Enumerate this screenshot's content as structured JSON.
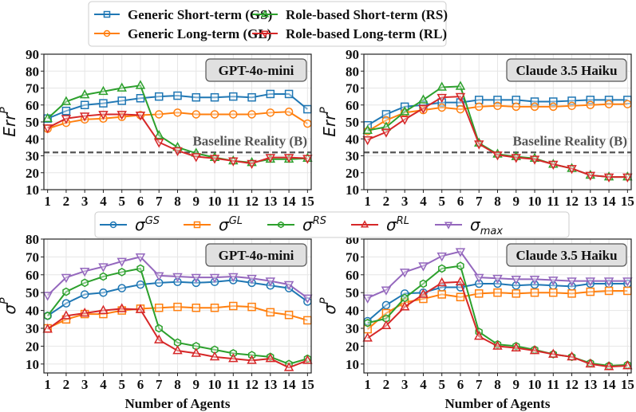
{
  "legend_top": [
    {
      "key": "GS",
      "label": "Generic Short-term (GS)",
      "color": "#1f77b4",
      "marker": "square"
    },
    {
      "key": "RS",
      "label": "Role-based Short-term (RS)",
      "color": "#2ca02c",
      "marker": "triangle-up"
    },
    {
      "key": "GL",
      "label": "Generic Long-term (GL)",
      "color": "#ff7f0e",
      "marker": "circle"
    },
    {
      "key": "RL",
      "label": "Role-based Long-term (RL)",
      "color": "#d62728",
      "marker": "triangle-down"
    }
  ],
  "legend_bottom": [
    {
      "key": "GS",
      "base": "σ",
      "sup": "GS",
      "sub": "",
      "color": "#1f77b4",
      "marker": "circle"
    },
    {
      "key": "GL",
      "base": "σ",
      "sup": "GL",
      "sub": "",
      "color": "#ff7f0e",
      "marker": "square"
    },
    {
      "key": "RS",
      "base": "σ",
      "sup": "RS",
      "sub": "",
      "color": "#2ca02c",
      "marker": "hexagon"
    },
    {
      "key": "RL",
      "base": "σ",
      "sup": "RL",
      "sub": "",
      "color": "#d62728",
      "marker": "triangle-up"
    },
    {
      "key": "max",
      "base": "σ",
      "sup": "",
      "sub": "max",
      "color": "#9467bd",
      "marker": "triangle-down"
    }
  ],
  "chart_data": [
    {
      "type": "line",
      "title": "GPT-4o-mini",
      "ylabel": "Err^P",
      "ylabel_base": "Err",
      "ylabel_sup": "P",
      "xlabel": "",
      "x": [
        1,
        2,
        3,
        4,
        5,
        6,
        7,
        8,
        9,
        10,
        11,
        12,
        13,
        14,
        15
      ],
      "ylim": [
        10,
        90
      ],
      "yticks": [
        10,
        20,
        30,
        40,
        50,
        60,
        70,
        80,
        90
      ],
      "grid": true,
      "baseline": {
        "value": 32,
        "label": "Baseline Reality (B)"
      },
      "series": [
        {
          "name": "Generic Short-term (GS)",
          "color": "#1f77b4",
          "marker": "square",
          "values": [
            52,
            56.5,
            60,
            61,
            62.5,
            64,
            65,
            65.5,
            64.5,
            64.5,
            65,
            64.5,
            66.5,
            66.5,
            57.5
          ]
        },
        {
          "name": "Generic Long-term (GL)",
          "color": "#ff7f0e",
          "marker": "circle",
          "values": [
            46,
            49.5,
            51.5,
            52,
            53,
            54,
            54.5,
            55.5,
            54.5,
            54.5,
            54.5,
            54.5,
            55.5,
            56,
            49
          ]
        },
        {
          "name": "Role-based Short-term (RS)",
          "color": "#2ca02c",
          "marker": "triangle-up",
          "values": [
            52,
            62,
            66,
            68,
            70,
            71.5,
            42,
            35,
            31.5,
            29,
            27,
            26,
            28,
            28,
            28.5
          ]
        },
        {
          "name": "Role-based Long-term (RL)",
          "color": "#d62728",
          "marker": "triangle-down",
          "values": [
            46.5,
            52,
            53.5,
            54.5,
            54.5,
            54,
            38,
            33,
            29.5,
            28.5,
            27,
            25.5,
            29,
            29,
            28.5
          ]
        }
      ]
    },
    {
      "type": "line",
      "title": "Claude 3.5 Haiku",
      "ylabel": "Err^P",
      "ylabel_base": "Err",
      "ylabel_sup": "P",
      "xlabel": "",
      "x": [
        1,
        2,
        3,
        4,
        5,
        6,
        7,
        8,
        9,
        10,
        11,
        12,
        13,
        14,
        15
      ],
      "ylim": [
        10,
        90
      ],
      "yticks": [
        10,
        20,
        30,
        40,
        50,
        60,
        70,
        80,
        90
      ],
      "grid": true,
      "baseline": {
        "value": 32,
        "label": "Baseline Reality (B)"
      },
      "series": [
        {
          "name": "Generic Short-term (GS)",
          "color": "#1f77b4",
          "marker": "square",
          "values": [
            48,
            54.5,
            59,
            60,
            61.5,
            61.5,
            63,
            63,
            63,
            62,
            62,
            62.5,
            63,
            63,
            63
          ]
        },
        {
          "name": "Generic Long-term (GL)",
          "color": "#ff7f0e",
          "marker": "circle",
          "values": [
            44.5,
            51,
            55.5,
            57,
            58.5,
            57.5,
            59,
            59.5,
            59,
            59,
            59,
            59.5,
            60,
            60.5,
            60.5
          ]
        },
        {
          "name": "Role-based Short-term (RS)",
          "color": "#2ca02c",
          "marker": "triangle-up",
          "values": [
            45,
            47,
            56,
            63,
            70.5,
            71,
            37.5,
            31,
            29.5,
            28.5,
            25,
            22.5,
            18.5,
            17.5,
            17.5
          ]
        },
        {
          "name": "Role-based Long-term (RL)",
          "color": "#d62728",
          "marker": "triangle-down",
          "values": [
            39.5,
            44,
            51.5,
            58,
            64.5,
            65,
            37,
            30.5,
            29,
            28,
            25,
            22.5,
            18.5,
            17.5,
            17.5
          ]
        }
      ]
    },
    {
      "type": "line",
      "title": "GPT-4o-mini",
      "ylabel": "σ^P",
      "ylabel_base": "σ",
      "ylabel_sup": "P",
      "xlabel": "Number of Agents",
      "x": [
        1,
        2,
        3,
        4,
        5,
        6,
        7,
        8,
        9,
        10,
        11,
        12,
        13,
        14,
        15
      ],
      "ylim": [
        5,
        80
      ],
      "yticks": [
        10,
        20,
        30,
        40,
        50,
        60,
        70,
        80
      ],
      "grid": true,
      "series": [
        {
          "name": "σ^GS",
          "color": "#1f77b4",
          "marker": "circle",
          "values": [
            37,
            44,
            49,
            50,
            52.5,
            54.5,
            55.5,
            56,
            55.5,
            56,
            57,
            55.5,
            54,
            52.5,
            45
          ]
        },
        {
          "name": "σ^GL",
          "color": "#ff7f0e",
          "marker": "square",
          "values": [
            30,
            35,
            38,
            38,
            40,
            41,
            41.5,
            42,
            41.5,
            41.5,
            42.5,
            42,
            39,
            37.5,
            34.5
          ]
        },
        {
          "name": "σ^RS",
          "color": "#2ca02c",
          "marker": "hexagon",
          "values": [
            37,
            50.5,
            55.5,
            59,
            61.5,
            63.5,
            30,
            22,
            20,
            18,
            16,
            15,
            14,
            10,
            13
          ]
        },
        {
          "name": "σ^RL",
          "color": "#d62728",
          "marker": "triangle-up",
          "values": [
            29.5,
            37,
            38.5,
            40,
            41,
            40.5,
            23.5,
            17.5,
            16,
            14,
            13,
            12,
            13,
            8,
            12
          ]
        },
        {
          "name": "σ_max",
          "color": "#9467bd",
          "marker": "triangle-down",
          "values": [
            48.5,
            58.5,
            62,
            64.5,
            67.5,
            70,
            59.5,
            59,
            58.5,
            58.5,
            59,
            58,
            56.5,
            54.5,
            47
          ]
        }
      ]
    },
    {
      "type": "line",
      "title": "Claude 3.5 Haiku",
      "ylabel": "σ^P",
      "ylabel_base": "σ",
      "ylabel_sup": "P",
      "xlabel": "Number of Agents",
      "x": [
        1,
        2,
        3,
        4,
        5,
        6,
        7,
        8,
        9,
        10,
        11,
        12,
        13,
        14,
        15
      ],
      "ylim": [
        5,
        80
      ],
      "yticks": [
        10,
        20,
        30,
        40,
        50,
        60,
        70,
        80
      ],
      "grid": true,
      "series": [
        {
          "name": "σ^GS",
          "color": "#1f77b4",
          "marker": "circle",
          "values": [
            34,
            43,
            49.5,
            50,
            53,
            53,
            55,
            55,
            54,
            54.5,
            54,
            53.5,
            55,
            55,
            55
          ]
        },
        {
          "name": "σ^GL",
          "color": "#ff7f0e",
          "marker": "square",
          "values": [
            29.5,
            38.5,
            44.5,
            46.5,
            49,
            47.5,
            49.5,
            50,
            49.5,
            50,
            50,
            49.5,
            50.5,
            51,
            51
          ]
        },
        {
          "name": "σ^RS",
          "color": "#2ca02c",
          "marker": "hexagon",
          "values": [
            33,
            35.5,
            47,
            55,
            63.5,
            65,
            28,
            21,
            20,
            18,
            15.5,
            14,
            10.5,
            9,
            9.5
          ]
        },
        {
          "name": "σ^RL",
          "color": "#d62728",
          "marker": "triangle-up",
          "values": [
            24.5,
            31.5,
            42,
            49,
            55.5,
            56,
            25.5,
            20,
            19,
            17.5,
            15.5,
            14,
            10,
            8.5,
            9
          ]
        },
        {
          "name": "σ_max",
          "color": "#9467bd",
          "marker": "triangle-down",
          "values": [
            47,
            51.5,
            61.5,
            65,
            70.5,
            73,
            58.5,
            58,
            57.5,
            57.5,
            57,
            56.5,
            56.5,
            56.5,
            56.5
          ]
        }
      ]
    }
  ]
}
